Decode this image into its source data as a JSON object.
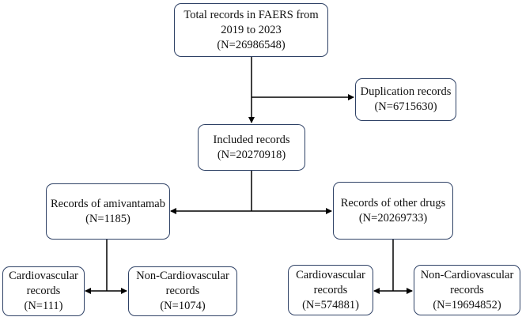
{
  "flowchart": {
    "total": {
      "line1": "Total records in FAERS from",
      "line2": "2019 to 2023",
      "line3": "(N=26986548)"
    },
    "duplication": {
      "line1": "Duplication records",
      "line2": "(N=6715630)"
    },
    "included": {
      "line1": "Included records",
      "line2": "(N=20270918)"
    },
    "amivantamab": {
      "line1": "Records of amivantamab",
      "line2": "(N=1185)"
    },
    "other_drugs": {
      "line1": "Records of other drugs",
      "line2": "(N=20269733)"
    },
    "ami_cardio": {
      "line1": "Cardiovascular",
      "line2": "records",
      "line3": "(N=111)"
    },
    "ami_noncardio": {
      "line1": "Non-Cardiovascular",
      "line2": "records",
      "line3": "(N=1074)"
    },
    "other_cardio": {
      "line1": "Cardiovascular",
      "line2": "records",
      "line3": "(N=574881)"
    },
    "other_noncardio": {
      "line1": "Non-Cardiovascular",
      "line2": "records",
      "line3": "(N=19694852)"
    }
  }
}
